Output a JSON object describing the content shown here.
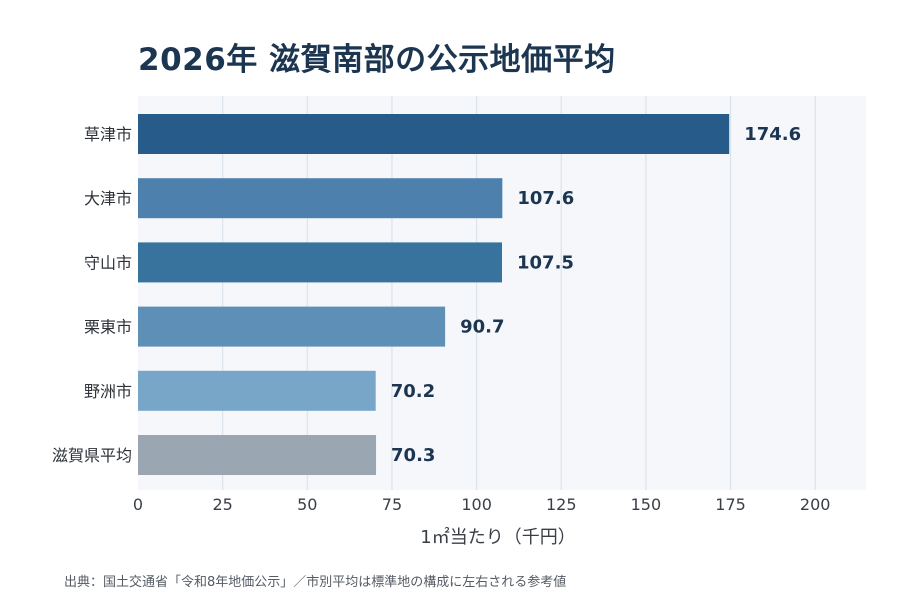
{
  "chart_data": {
    "type": "bar",
    "orientation": "horizontal",
    "title": "2026年 滋賀南部の公示地価平均",
    "xlabel": "1㎡当たり（千円）",
    "ylabel": "",
    "categories": [
      "草津市",
      "大津市",
      "守山市",
      "栗東市",
      "野洲市",
      "滋賀県平均"
    ],
    "values": [
      174.6,
      107.6,
      107.5,
      90.7,
      70.2,
      70.3
    ],
    "value_labels": [
      "174.6",
      "107.6",
      "107.5",
      "90.7",
      "70.2",
      "70.3"
    ],
    "colors": [
      "#265b8a",
      "#4d80ad",
      "#37739c",
      "#5d8fb7",
      "#78a6c8",
      "#9aa6b1"
    ],
    "xlim": [
      0,
      215
    ],
    "xticks": [
      0,
      25,
      50,
      75,
      100,
      125,
      150,
      175,
      200
    ],
    "xtick_labels": [
      "0",
      "25",
      "50",
      "75",
      "100",
      "125",
      "150",
      "175",
      "200"
    ],
    "grid": "vertical",
    "legend": "none"
  },
  "footer": {
    "source": "出典：国土交通省「令和8年地価公示」／市別平均は標準地の構成に左右される参考値"
  }
}
